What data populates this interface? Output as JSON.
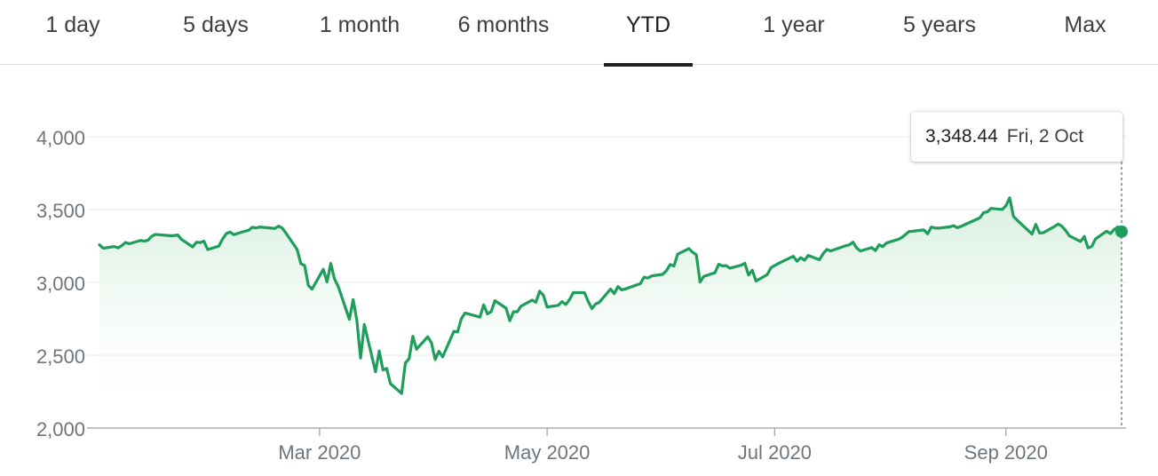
{
  "tabs": [
    {
      "label": "1 day",
      "active": false
    },
    {
      "label": "5 days",
      "active": false
    },
    {
      "label": "1 month",
      "active": false
    },
    {
      "label": "6 months",
      "active": false
    },
    {
      "label": "YTD",
      "active": true
    },
    {
      "label": "1 year",
      "active": false
    },
    {
      "label": "5 years",
      "active": false
    },
    {
      "label": "Max",
      "active": false
    }
  ],
  "tooltip": {
    "value": "3,348.44",
    "date": "Fri, 2 Oct"
  },
  "colors": {
    "line": "#1e9e5a",
    "fill_top": "#d4eedd",
    "grid": "#e8eaed",
    "axis": "#9aa0a6",
    "text": "#70757a"
  },
  "chart_data": {
    "type": "area",
    "title": "",
    "xlabel": "",
    "ylabel": "",
    "ylim": [
      2000,
      4000
    ],
    "yticks": [
      2000,
      2500,
      3000,
      3500,
      4000
    ],
    "ytick_labels": [
      "2,000",
      "2,500",
      "3,000",
      "3,500",
      "4,000"
    ],
    "xticks": [
      "2020-03-01",
      "2020-05-01",
      "2020-07-01",
      "2020-09-01"
    ],
    "xtick_labels": [
      "Mar 2020",
      "May 2020",
      "Jul 2020",
      "Sep 2020"
    ],
    "xlim": [
      "2020-01-02",
      "2020-10-02"
    ],
    "grid": true,
    "x": [
      "2020-01-02",
      "2020-01-03",
      "2020-01-06",
      "2020-01-07",
      "2020-01-08",
      "2020-01-09",
      "2020-01-10",
      "2020-01-13",
      "2020-01-14",
      "2020-01-15",
      "2020-01-16",
      "2020-01-17",
      "2020-01-21",
      "2020-01-22",
      "2020-01-23",
      "2020-01-24",
      "2020-01-27",
      "2020-01-28",
      "2020-01-29",
      "2020-01-30",
      "2020-01-31",
      "2020-02-03",
      "2020-02-04",
      "2020-02-05",
      "2020-02-06",
      "2020-02-07",
      "2020-02-10",
      "2020-02-11",
      "2020-02-12",
      "2020-02-13",
      "2020-02-14",
      "2020-02-18",
      "2020-02-19",
      "2020-02-20",
      "2020-02-21",
      "2020-02-24",
      "2020-02-25",
      "2020-02-26",
      "2020-02-27",
      "2020-02-28",
      "2020-03-02",
      "2020-03-03",
      "2020-03-04",
      "2020-03-05",
      "2020-03-06",
      "2020-03-09",
      "2020-03-10",
      "2020-03-11",
      "2020-03-12",
      "2020-03-13",
      "2020-03-16",
      "2020-03-17",
      "2020-03-18",
      "2020-03-19",
      "2020-03-20",
      "2020-03-23",
      "2020-03-24",
      "2020-03-25",
      "2020-03-26",
      "2020-03-27",
      "2020-03-30",
      "2020-03-31",
      "2020-04-01",
      "2020-04-02",
      "2020-04-03",
      "2020-04-06",
      "2020-04-07",
      "2020-04-08",
      "2020-04-09",
      "2020-04-13",
      "2020-04-14",
      "2020-04-15",
      "2020-04-16",
      "2020-04-17",
      "2020-04-20",
      "2020-04-21",
      "2020-04-22",
      "2020-04-23",
      "2020-04-24",
      "2020-04-27",
      "2020-04-28",
      "2020-04-29",
      "2020-04-30",
      "2020-05-01",
      "2020-05-04",
      "2020-05-05",
      "2020-05-06",
      "2020-05-07",
      "2020-05-08",
      "2020-05-11",
      "2020-05-12",
      "2020-05-13",
      "2020-05-14",
      "2020-05-15",
      "2020-05-18",
      "2020-05-19",
      "2020-05-20",
      "2020-05-21",
      "2020-05-22",
      "2020-05-26",
      "2020-05-27",
      "2020-05-28",
      "2020-05-29",
      "2020-06-01",
      "2020-06-02",
      "2020-06-03",
      "2020-06-04",
      "2020-06-05",
      "2020-06-08",
      "2020-06-09",
      "2020-06-10",
      "2020-06-11",
      "2020-06-12",
      "2020-06-15",
      "2020-06-16",
      "2020-06-17",
      "2020-06-18",
      "2020-06-19",
      "2020-06-22",
      "2020-06-23",
      "2020-06-24",
      "2020-06-25",
      "2020-06-26",
      "2020-06-29",
      "2020-06-30",
      "2020-07-01",
      "2020-07-02",
      "2020-07-06",
      "2020-07-07",
      "2020-07-08",
      "2020-07-09",
      "2020-07-10",
      "2020-07-13",
      "2020-07-14",
      "2020-07-15",
      "2020-07-16",
      "2020-07-17",
      "2020-07-20",
      "2020-07-21",
      "2020-07-22",
      "2020-07-23",
      "2020-07-24",
      "2020-07-27",
      "2020-07-28",
      "2020-07-29",
      "2020-07-30",
      "2020-07-31",
      "2020-08-03",
      "2020-08-04",
      "2020-08-05",
      "2020-08-06",
      "2020-08-07",
      "2020-08-10",
      "2020-08-11",
      "2020-08-12",
      "2020-08-13",
      "2020-08-14",
      "2020-08-17",
      "2020-08-18",
      "2020-08-19",
      "2020-08-20",
      "2020-08-21",
      "2020-08-24",
      "2020-08-25",
      "2020-08-26",
      "2020-08-27",
      "2020-08-28",
      "2020-08-31",
      "2020-09-01",
      "2020-09-02",
      "2020-09-03",
      "2020-09-04",
      "2020-09-08",
      "2020-09-09",
      "2020-09-10",
      "2020-09-11",
      "2020-09-14",
      "2020-09-15",
      "2020-09-16",
      "2020-09-17",
      "2020-09-18",
      "2020-09-21",
      "2020-09-22",
      "2020-09-23",
      "2020-09-24",
      "2020-09-25",
      "2020-09-28",
      "2020-09-29",
      "2020-09-30",
      "2020-10-01",
      "2020-10-02"
    ],
    "series": [
      {
        "values": [
          3257.85,
          3234.85,
          3246.28,
          3237.18,
          3253.05,
          3274.7,
          3265.35,
          3288.13,
          3283.15,
          3289.29,
          3316.81,
          3329.62,
          3320.79,
          3321.75,
          3325.54,
          3295.47,
          3243.63,
          3276.24,
          3273.4,
          3283.66,
          3225.52,
          3248.92,
          3297.59,
          3334.69,
          3345.78,
          3327.71,
          3352.09,
          3357.75,
          3379.45,
          3373.94,
          3380.16,
          3370.29,
          3386.15,
          3373.23,
          3337.75,
          3225.89,
          3128.21,
          3116.39,
          2978.76,
          2954.22,
          3090.23,
          3003.37,
          3130.12,
          3023.94,
          2972.37,
          2746.56,
          2882.23,
          2741.38,
          2480.64,
          2711.02,
          2386.13,
          2529.19,
          2398.1,
          2409.39,
          2304.92,
          2237.4,
          2447.33,
          2475.56,
          2630.07,
          2541.47,
          2626.65,
          2584.59,
          2470.5,
          2526.9,
          2488.65,
          2663.68,
          2659.41,
          2749.98,
          2789.82,
          2761.63,
          2846.06,
          2783.36,
          2799.55,
          2874.56,
          2823.16,
          2736.56,
          2799.31,
          2797.8,
          2836.74,
          2878.48,
          2863.39,
          2939.51,
          2912.43,
          2830.71,
          2842.74,
          2868.44,
          2848.42,
          2881.19,
          2929.8,
          2930.32,
          2870.12,
          2820.0,
          2852.5,
          2863.7,
          2953.91,
          2922.94,
          2971.61,
          2948.51,
          2955.45,
          2991.77,
          3036.13,
          3029.73,
          3044.31,
          3055.73,
          3080.82,
          3122.87,
          3112.35,
          3193.93,
          3232.39,
          3207.18,
          3190.14,
          3002.1,
          3041.31,
          3066.59,
          3124.74,
          3113.49,
          3115.34,
          3097.74,
          3117.86,
          3131.29,
          3050.33,
          3083.76,
          3009.05,
          3053.24,
          3100.29,
          3115.86,
          3130.01,
          3179.72,
          3145.32,
          3169.94,
          3152.05,
          3185.04,
          3155.22,
          3197.52,
          3226.56,
          3215.57,
          3224.73,
          3251.84,
          3257.3,
          3276.02,
          3235.66,
          3215.63,
          3239.41,
          3218.44,
          3258.44,
          3246.22,
          3271.12,
          3294.61,
          3306.51,
          3327.77,
          3349.16,
          3351.28,
          3360.47,
          3333.69,
          3380.35,
          3373.43,
          3372.85,
          3381.99,
          3389.78,
          3374.85,
          3385.51,
          3397.16,
          3431.28,
          3443.12,
          3478.73,
          3484.55,
          3508.01,
          3500.31,
          3526.65,
          3580.84,
          3455.06,
          3426.96,
          3331.84,
          3398.96,
          3339.19,
          3340.97,
          3383.54,
          3401.2,
          3385.49,
          3357.01,
          3319.47,
          3281.06,
          3315.57,
          3236.92,
          3246.59,
          3298.46,
          3351.6,
          3335.47,
          3363.0,
          3380.8,
          3348.44
        ]
      }
    ]
  }
}
